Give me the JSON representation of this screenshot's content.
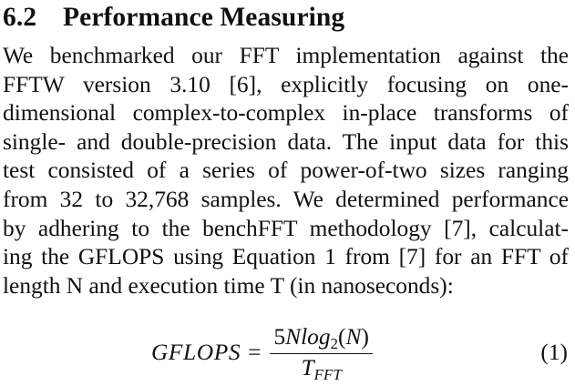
{
  "section": {
    "number": "6.2",
    "title": "Performance Measuring"
  },
  "paragraph_lines": [
    "We benchmarked our FFT implementation against the",
    "FFTW version 3.10 [6], explicitly focusing on one-",
    "dimensional complex-to-complex in-place transforms of",
    "single- and double-precision data. The input data for this",
    "test consisted of a series of power-of-two sizes ranging",
    "from 32 to 32,768 samples. We determined performance",
    "by adhering to the benchFFT methodology [7], calculat-",
    "ing the GFLOPS using Equation 1 from [7] for an FFT of",
    "length N and execution time T (in nanoseconds):"
  ],
  "equation": {
    "lhs": "GFLOPS",
    "equals": "=",
    "numerator_coeff": "5",
    "numerator_var": "Nlog",
    "numerator_sub": "2",
    "numerator_open": "(",
    "numerator_arg": "N",
    "numerator_close": ")",
    "denominator_var": "T",
    "denominator_sub": "FFT",
    "number": "(1)"
  }
}
